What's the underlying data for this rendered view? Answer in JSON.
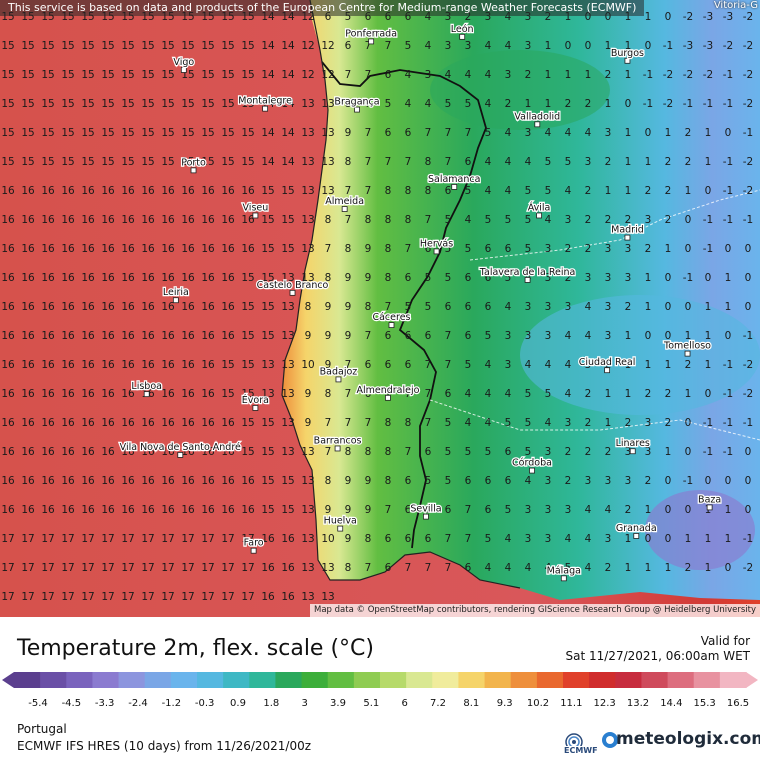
{
  "header": {
    "notice": "This service is based on data and products of the European Centre for Medium-range Weather Forecasts (ECMWF)",
    "corner_city": "Vitoria-G"
  },
  "map": {
    "attribution": "Map data © OpenStreetMap contributors, rendering GIScience Research Group @ Heidelberg University",
    "cities": [
      {
        "name": "León",
        "lon": -5.57,
        "lat": 42.6
      },
      {
        "name": "Ponferrada",
        "lon": -6.6,
        "lat": 42.55
      },
      {
        "name": "Vigo",
        "lon": -8.72,
        "lat": 42.24
      },
      {
        "name": "Burgos",
        "lon": -3.7,
        "lat": 42.34
      },
      {
        "name": "Montalegre",
        "lon": -7.8,
        "lat": 41.82
      },
      {
        "name": "Bragança",
        "lon": -6.76,
        "lat": 41.81
      },
      {
        "name": "Valladolid",
        "lon": -4.72,
        "lat": 41.65
      },
      {
        "name": "Porto",
        "lon": -8.61,
        "lat": 41.15
      },
      {
        "name": "Salamanca",
        "lon": -5.66,
        "lat": 40.97
      },
      {
        "name": "Viseu",
        "lon": -7.91,
        "lat": 40.66
      },
      {
        "name": "Almeida",
        "lon": -6.9,
        "lat": 40.73
      },
      {
        "name": "Ávila",
        "lon": -4.7,
        "lat": 40.66
      },
      {
        "name": "Madrid",
        "lon": -3.7,
        "lat": 40.42
      },
      {
        "name": "Hervás",
        "lon": -5.86,
        "lat": 40.27
      },
      {
        "name": "Talavera de la Reina",
        "lon": -4.83,
        "lat": 39.96
      },
      {
        "name": "Castelo Branco",
        "lon": -7.49,
        "lat": 39.82
      },
      {
        "name": "Leiria",
        "lon": -8.81,
        "lat": 39.74
      },
      {
        "name": "Cáceres",
        "lon": -6.37,
        "lat": 39.47
      },
      {
        "name": "Ciudad Real",
        "lon": -3.93,
        "lat": 38.98
      },
      {
        "name": "Tomelloso",
        "lon": -3.02,
        "lat": 39.16
      },
      {
        "name": "Badajoz",
        "lon": -6.97,
        "lat": 38.88
      },
      {
        "name": "Lisboa",
        "lon": -9.14,
        "lat": 38.72
      },
      {
        "name": "Almendralejo",
        "lon": -6.41,
        "lat": 38.68
      },
      {
        "name": "Évora",
        "lon": -7.91,
        "lat": 38.57
      },
      {
        "name": "Vila Nova de Santo André",
        "lon": -8.76,
        "lat": 38.06
      },
      {
        "name": "Barrancos",
        "lon": -6.98,
        "lat": 38.13
      },
      {
        "name": "Linares",
        "lon": -3.64,
        "lat": 38.1
      },
      {
        "name": "Córdoba",
        "lon": -4.78,
        "lat": 37.89
      },
      {
        "name": "Baza",
        "lon": -2.77,
        "lat": 37.49
      },
      {
        "name": "Sevilla",
        "lon": -5.98,
        "lat": 37.39
      },
      {
        "name": "Huelva",
        "lon": -6.95,
        "lat": 37.26
      },
      {
        "name": "Granada",
        "lon": -3.6,
        "lat": 37.18
      },
      {
        "name": "Faro",
        "lon": -7.93,
        "lat": 37.02
      },
      {
        "name": "Málaga",
        "lon": -4.42,
        "lat": 36.72
      }
    ]
  },
  "legend": {
    "title": "Temperature 2m, flex. scale (°C)",
    "valid_label": "Valid for",
    "valid_time": "Sat 11/27/2021, 06:00am WET",
    "tick_labels": [
      "-5.4",
      "-4.5",
      "-3.3",
      "-2.4",
      "-1.2",
      "-0.3",
      "0.9",
      "1.8",
      "3",
      "3.9",
      "5.1",
      "6",
      "7.2",
      "8.1",
      "9.3",
      "10.2",
      "11.1",
      "12.3",
      "13.2",
      "14.4",
      "15.3",
      "16.5"
    ],
    "colors": [
      "#5b3f8e",
      "#6a4fa6",
      "#7a63bd",
      "#8b7bd0",
      "#8c95de",
      "#7aa6e6",
      "#6ab4ec",
      "#55b8e0",
      "#3eb8c4",
      "#2fb79a",
      "#2aa85c",
      "#3cae3a",
      "#62be42",
      "#8fcc52",
      "#b6da6a",
      "#d9e892",
      "#f0ec9c",
      "#f5d46a",
      "#f2b44c",
      "#ee8f3c",
      "#e9682e",
      "#e0402a",
      "#d02c2c",
      "#c72c3e",
      "#cf4a5c",
      "#dd6d7e",
      "#e892a0",
      "#f2b6c2"
    ]
  },
  "footer": {
    "region": "Portugal",
    "model_run": "ECMWF IFS HRES (10 days) from 11/26/2021/00z",
    "ecmwf_label": "ECMWF",
    "brand": "meteologix.com"
  },
  "icons": [
    "ecmwf-logo-icon",
    "meteologix-logo-icon",
    "legend-left-arrow-icon",
    "legend-right-arrow-icon",
    "city-marker-icon"
  ]
}
